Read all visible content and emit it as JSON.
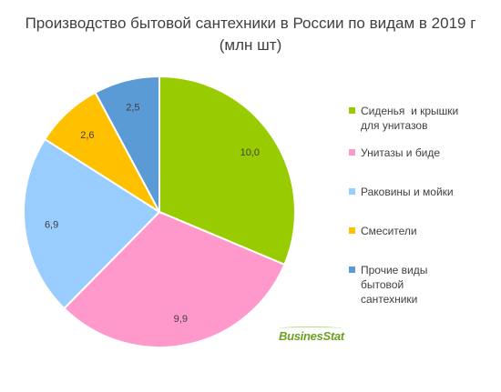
{
  "chart_data": {
    "type": "pie",
    "title_line1": "Производство бытовой сантехники в России по видам в 2019 г",
    "title_line2": "(млн шт)",
    "series": [
      {
        "name": "Сиденья и крышки для унитазов",
        "value": 10.0,
        "label": "10,0",
        "color": "#99cc00",
        "legend_lines": [
          "Сиденья  и крышки",
          "для унитазов"
        ]
      },
      {
        "name": "Унитазы и биде",
        "value": 9.9,
        "label": "9,9",
        "color": "#ff99cc",
        "legend_lines": [
          "Унитазы и биде"
        ]
      },
      {
        "name": "Раковины и мойки",
        "value": 6.9,
        "label": "6,9",
        "color": "#99ccff",
        "legend_lines": [
          "Раковины и мойки"
        ]
      },
      {
        "name": "Смесители",
        "value": 2.6,
        "label": "2,6",
        "color": "#ffc000",
        "legend_lines": [
          "Смесители"
        ]
      },
      {
        "name": "Прочие виды бытовой сантехники",
        "value": 2.5,
        "label": "2,5",
        "color": "#5b9bd5",
        "legend_lines": [
          "Прочие виды",
          "бытовой",
          "сантехники"
        ]
      }
    ],
    "legend_position": "right",
    "start_angle": "12 o'clock",
    "direction": "clockwise"
  },
  "watermark": {
    "text": "BusinesStat"
  }
}
